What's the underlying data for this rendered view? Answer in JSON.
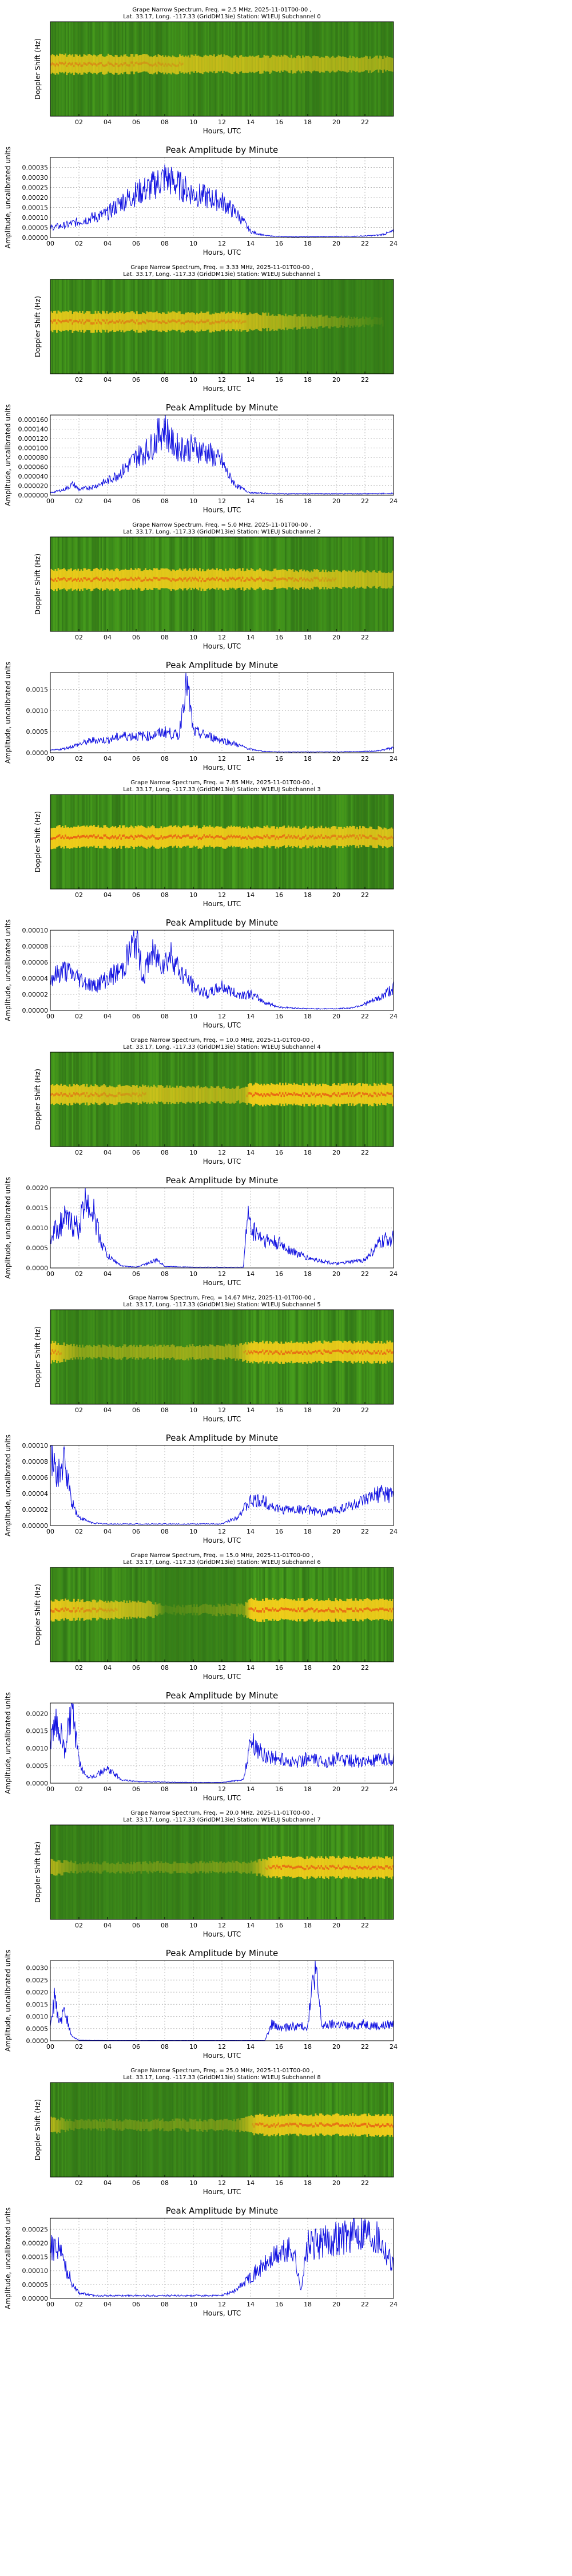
{
  "figure": {
    "spectrogram_ylabel": "Doppler Shift (Hz)",
    "spectrogram_xlabel": "Hours, UTC",
    "spectrogram_ticks": [
      "02",
      "04",
      "06",
      "08",
      "10",
      "12",
      "14",
      "16",
      "18",
      "20",
      "22"
    ],
    "amplitude_title": "Peak Amplitude by Minute",
    "amplitude_ylabel": "Amplitude, uncalibrated units",
    "amplitude_xlabel": "Hours, UTC",
    "amplitude_ticks": [
      "00",
      "02",
      "04",
      "06",
      "08",
      "10",
      "12",
      "14",
      "16",
      "18",
      "20",
      "22",
      "24"
    ],
    "colors": {
      "spectrogram_background": "#2e8b1f",
      "signal_band": "#ffd21a",
      "signal_core": "#e83010",
      "amplitude_line": "#1010e0"
    }
  },
  "chart_data": [
    {
      "type": "heatmap",
      "title": "Grape Narrow Spectrum, Freq. = 2.5 MHz, 2025-11-01T00-00 ,",
      "subtitle": "Lat.  33.17, Long. -117.33 (GridDM13ie) Station: W1EUJ Subchannel 0",
      "xlabel": "Hours, UTC",
      "ylabel": "Doppler Shift (Hz)",
      "xlim": [
        0,
        24
      ],
      "signal_band": [
        [
          0,
          0.8
        ],
        [
          14,
          0.65
        ],
        [
          24,
          0.5
        ]
      ]
    },
    {
      "type": "line",
      "title": "Peak Amplitude by Minute",
      "xlabel": "Hours, UTC",
      "ylabel": "Amplitude, uncalibrated units",
      "xlim": [
        0,
        24
      ],
      "ylim": [
        0,
        0.0004
      ],
      "yticks": [
        "0.00000",
        "0.00005",
        "0.00010",
        "0.00015",
        "0.00020",
        "0.00025",
        "0.00030",
        "0.00035"
      ],
      "x": [
        0,
        1,
        2,
        3,
        4,
        5,
        6,
        7,
        8,
        9,
        10,
        11,
        12,
        13,
        13.5,
        14,
        15,
        16,
        17,
        18,
        19,
        20,
        21,
        22,
        23,
        24
      ],
      "y": [
        5e-05,
        6e-05,
        8e-05,
        0.0001,
        0.00012,
        0.00018,
        0.00022,
        0.00025,
        0.0003,
        0.00026,
        0.00022,
        0.0002,
        0.00018,
        0.00012,
        8e-05,
        3e-05,
        1e-05,
        5e-06,
        4e-06,
        4e-06,
        5e-06,
        6e-06,
        6e-06,
        8e-06,
        1.2e-05,
        3e-05
      ]
    },
    {
      "type": "heatmap",
      "title": "Grape Narrow Spectrum, Freq. = 3.33 MHz, 2025-11-01T00-00 ,",
      "subtitle": "Lat.  33.17, Long. -117.33 (GridDM13ie) Station: W1EUJ Subchannel 1",
      "xlabel": "Hours, UTC",
      "ylabel": "Doppler Shift (Hz)",
      "xlim": [
        0,
        24
      ],
      "signal_band": [
        [
          0,
          0.85
        ],
        [
          13,
          0.75
        ],
        [
          24,
          0.0
        ]
      ]
    },
    {
      "type": "line",
      "title": "Peak Amplitude by Minute",
      "xlabel": "Hours, UTC",
      "ylabel": "Amplitude, uncalibrated units",
      "xlim": [
        0,
        24
      ],
      "ylim": [
        0,
        0.00017
      ],
      "yticks": [
        "0.000000",
        "0.000020",
        "0.000040",
        "0.000060",
        "0.000080",
        "0.000100",
        "0.000120",
        "0.000140",
        "0.000160"
      ],
      "x": [
        0,
        1,
        1.6,
        2,
        3,
        4,
        5,
        6,
        7,
        7.5,
        8,
        8.5,
        9,
        10,
        11,
        12,
        12.5,
        13,
        14,
        16,
        18,
        20,
        22,
        24
      ],
      "y": [
        5e-06,
        1.2e-05,
        2.4e-05,
        1.2e-05,
        1.8e-05,
        3e-05,
        5e-05,
        8e-05,
        0.0001,
        0.000125,
        0.000145,
        0.00011,
        0.0001,
        0.0001,
        9e-05,
        7e-05,
        4e-05,
        2e-05,
        5e-06,
        3e-06,
        3e-06,
        3e-06,
        3e-06,
        4e-06
      ]
    },
    {
      "type": "heatmap",
      "title": "Grape Narrow Spectrum, Freq. = 5.0 MHz, 2025-11-01T00-00 ,",
      "subtitle": "Lat.  33.17, Long. -117.33 (GridDM13ie) Station: W1EUJ Subchannel 2",
      "xlabel": "Hours, UTC",
      "ylabel": "Doppler Shift (Hz)",
      "xlim": [
        0,
        24
      ],
      "signal_band": [
        [
          0,
          0.9
        ],
        [
          14,
          0.85
        ],
        [
          24,
          0.6
        ]
      ]
    },
    {
      "type": "line",
      "title": "Peak Amplitude by Minute",
      "xlabel": "Hours, UTC",
      "ylabel": "Amplitude, uncalibrated units",
      "xlim": [
        0,
        24
      ],
      "ylim": [
        0,
        0.0019
      ],
      "yticks": [
        "0.0000",
        "0.0005",
        "0.0010",
        "0.0015"
      ],
      "x": [
        0,
        1,
        2,
        3,
        4,
        5,
        6,
        7,
        8,
        9,
        9.5,
        10,
        11,
        12,
        13,
        14,
        15,
        16,
        18,
        20,
        22,
        23,
        24
      ],
      "y": [
        5e-05,
        0.0001,
        0.0002,
        0.0003,
        0.0003,
        0.0004,
        0.0004,
        0.0004,
        0.0005,
        0.0004,
        0.0018,
        0.0005,
        0.0004,
        0.0003,
        0.0002,
        8e-05,
        3e-05,
        2e-05,
        2e-05,
        2e-05,
        3e-05,
        5e-05,
        0.00012
      ]
    },
    {
      "type": "heatmap",
      "title": "Grape Narrow Spectrum, Freq. = 7.85 MHz, 2025-11-01T00-00 ,",
      "subtitle": "Lat.  33.17, Long. -117.33 (GridDM13ie) Station: W1EUJ Subchannel 3",
      "xlabel": "Hours, UTC",
      "ylabel": "Doppler Shift (Hz)",
      "xlim": [
        0,
        24
      ],
      "signal_band": [
        [
          0,
          0.95
        ],
        [
          14,
          0.9
        ],
        [
          24,
          0.8
        ]
      ]
    },
    {
      "type": "line",
      "title": "Peak Amplitude by Minute",
      "xlabel": "Hours, UTC",
      "ylabel": "Amplitude, uncalibrated units",
      "xlim": [
        0,
        24
      ],
      "ylim": [
        0,
        0.0001
      ],
      "yticks": [
        "0.00000",
        "0.00002",
        "0.00004",
        "0.00006",
        "0.00008",
        "0.00010"
      ],
      "x": [
        0,
        1,
        2,
        3,
        4,
        5,
        5.5,
        6,
        6.5,
        7,
        8,
        8.5,
        9,
        10,
        11,
        12,
        13,
        14,
        15,
        16,
        18,
        20,
        21,
        22,
        23,
        24
      ],
      "y": [
        4e-05,
        5e-05,
        4e-05,
        3e-05,
        4e-05,
        5e-05,
        7e-05,
        9e-05,
        4e-05,
        7e-05,
        6e-05,
        7e-05,
        5e-05,
        3e-05,
        2e-05,
        3e-05,
        2e-05,
        2e-05,
        1e-05,
        4e-06,
        2e-06,
        2e-06,
        3e-06,
        8e-06,
        1.5e-05,
        2.8e-05
      ]
    },
    {
      "type": "heatmap",
      "title": "Grape Narrow Spectrum, Freq. = 10.0 MHz, 2025-11-01T00-00 ,",
      "subtitle": "Lat.  33.17, Long. -117.33 (GridDM13ie) Station: W1EUJ Subchannel 4",
      "xlabel": "Hours, UTC",
      "ylabel": "Doppler Shift (Hz)",
      "xlim": [
        0,
        24
      ],
      "signal_band": [
        [
          0,
          0.85
        ],
        [
          13.5,
          0.55
        ],
        [
          14,
          0.95
        ],
        [
          24,
          0.9
        ]
      ]
    },
    {
      "type": "line",
      "title": "Peak Amplitude by Minute",
      "xlabel": "Hours, UTC",
      "ylabel": "Amplitude, uncalibrated units",
      "xlim": [
        0,
        24
      ],
      "ylim": [
        0,
        0.002
      ],
      "yticks": [
        "0.0000",
        "0.0005",
        "0.0010",
        "0.0015",
        "0.0020"
      ],
      "x": [
        0,
        1,
        2,
        2.5,
        3,
        3.5,
        4,
        5,
        6,
        7.5,
        8,
        10,
        12,
        13.5,
        13.8,
        14,
        15,
        16,
        17,
        18,
        20,
        22,
        23,
        24
      ],
      "y": [
        0.0008,
        0.0012,
        0.001,
        0.0018,
        0.0014,
        0.0007,
        0.0003,
        5e-05,
        2e-05,
        0.0002,
        4e-05,
        2e-05,
        2e-05,
        2e-05,
        0.0014,
        0.001,
        0.0007,
        0.0006,
        0.0004,
        0.00025,
        0.0001,
        0.0002,
        0.0006,
        0.0008
      ]
    },
    {
      "type": "heatmap",
      "title": "Grape Narrow Spectrum, Freq. = 14.67 MHz, 2025-11-01T00-00 ,",
      "subtitle": "Lat.  33.17, Long. -117.33 (GridDM13ie) Station: W1EUJ Subchannel 5",
      "xlabel": "Hours, UTC",
      "ylabel": "Doppler Shift (Hz)",
      "xlim": [
        0,
        24
      ],
      "signal_band": [
        [
          0,
          0.9
        ],
        [
          2,
          0.4
        ],
        [
          13,
          0.5
        ],
        [
          14,
          0.9
        ],
        [
          24,
          0.9
        ]
      ]
    },
    {
      "type": "line",
      "title": "Peak Amplitude by Minute",
      "xlabel": "Hours, UTC",
      "ylabel": "Amplitude, uncalibrated units",
      "xlim": [
        0,
        24
      ],
      "ylim": [
        0,
        0.0001
      ],
      "yticks": [
        "0.00000",
        "0.00002",
        "0.00004",
        "0.00006",
        "0.00008",
        "0.00010"
      ],
      "x": [
        0,
        0.5,
        1,
        1.5,
        2,
        3,
        4,
        6,
        8,
        10,
        12,
        13,
        14,
        15,
        16,
        17,
        18,
        19,
        20,
        21,
        22,
        23,
        24
      ],
      "y": [
        9e-05,
        6e-05,
        8e-05,
        3e-05,
        1e-05,
        3e-06,
        2e-06,
        2e-06,
        2e-06,
        2e-06,
        2e-06,
        1e-05,
        3e-05,
        3e-05,
        2e-05,
        2e-05,
        2e-05,
        1.5e-05,
        2e-05,
        2.5e-05,
        3e-05,
        4e-05,
        4e-05
      ]
    },
    {
      "type": "heatmap",
      "title": "Grape Narrow Spectrum, Freq. = 15.0 MHz, 2025-11-01T00-00 ,",
      "subtitle": "Lat.  33.17, Long. -117.33 (GridDM13ie) Station: W1EUJ Subchannel 6",
      "xlabel": "Hours, UTC",
      "ylabel": "Doppler Shift (Hz)",
      "xlim": [
        0,
        24
      ],
      "signal_band": [
        [
          0,
          0.9
        ],
        [
          7,
          0.6
        ],
        [
          8,
          0.1
        ],
        [
          13.5,
          0.3
        ],
        [
          14,
          0.95
        ],
        [
          24,
          0.9
        ]
      ]
    },
    {
      "type": "line",
      "title": "Peak Amplitude by Minute",
      "xlabel": "Hours, UTC",
      "ylabel": "Amplitude, uncalibrated units",
      "xlim": [
        0,
        24
      ],
      "ylim": [
        0,
        0.0023
      ],
      "yticks": [
        "0.0000",
        "0.0005",
        "0.0010",
        "0.0015",
        "0.0020"
      ],
      "x": [
        0,
        0.5,
        1,
        1.5,
        2,
        2.5,
        3,
        4,
        5,
        6,
        8,
        10,
        12,
        13.5,
        14,
        15,
        16,
        17,
        18,
        19,
        20,
        22,
        24
      ],
      "y": [
        0.0012,
        0.0018,
        0.0009,
        0.0021,
        0.0006,
        0.0002,
        0.0002,
        0.0004,
        0.0001,
        5e-05,
        3e-05,
        2e-05,
        2e-05,
        0.0001,
        0.0012,
        0.0008,
        0.0007,
        0.0006,
        0.0007,
        0.0006,
        0.0007,
        0.0006,
        0.0007
      ]
    },
    {
      "type": "heatmap",
      "title": "Grape Narrow Spectrum, Freq. = 20.0 MHz, 2025-11-01T00-00 ,",
      "subtitle": "Lat.  33.17, Long. -117.33 (GridDM13ie) Station: W1EUJ Subchannel 7",
      "xlabel": "Hours, UTC",
      "ylabel": "Doppler Shift (Hz)",
      "xlim": [
        0,
        24
      ],
      "signal_band": [
        [
          0,
          0.6
        ],
        [
          2,
          0.2
        ],
        [
          14,
          0.3
        ],
        [
          15.5,
          0.9
        ],
        [
          24,
          0.9
        ]
      ]
    },
    {
      "type": "line",
      "title": "Peak Amplitude by Minute",
      "xlabel": "Hours, UTC",
      "ylabel": "Amplitude, uncalibrated units",
      "xlim": [
        0,
        24
      ],
      "ylim": [
        0,
        0.0033
      ],
      "yticks": [
        "0.0000",
        "0.0005",
        "0.0010",
        "0.0015",
        "0.0020",
        "0.0025",
        "0.0030"
      ],
      "x": [
        0,
        0.3,
        0.6,
        1,
        1.5,
        2,
        4,
        8,
        12,
        15,
        15.5,
        16,
        17,
        18,
        18.5,
        19,
        20,
        21,
        22,
        23,
        24
      ],
      "y": [
        0.0006,
        0.0018,
        0.0007,
        0.0012,
        0.0002,
        2e-05,
        1e-05,
        1e-05,
        1e-05,
        1e-05,
        0.0007,
        0.0005,
        0.0006,
        0.0006,
        0.0031,
        0.0006,
        0.0007,
        0.0006,
        0.0007,
        0.0006,
        0.0007
      ]
    },
    {
      "type": "heatmap",
      "title": "Grape Narrow Spectrum, Freq. = 25.0 MHz, 2025-11-01T00-00 ,",
      "subtitle": "Lat.  33.17, Long. -117.33 (GridDM13ie) Station: W1EUJ Subchannel 8",
      "xlabel": "Hours, UTC",
      "ylabel": "Doppler Shift (Hz)",
      "xlim": [
        0,
        24
      ],
      "signal_band": [
        [
          0,
          0.6
        ],
        [
          1.5,
          0.2
        ],
        [
          13,
          0.3
        ],
        [
          14.5,
          0.85
        ],
        [
          24,
          0.95
        ]
      ]
    },
    {
      "type": "line",
      "title": "Peak Amplitude by Minute",
      "xlabel": "Hours, UTC",
      "ylabel": "Amplitude, uncalibrated units",
      "xlim": [
        0,
        24
      ],
      "ylim": [
        0,
        0.00029
      ],
      "yticks": [
        "0.00000",
        "0.00005",
        "0.00010",
        "0.00015",
        "0.00020",
        "0.00025"
      ],
      "x": [
        0,
        0.5,
        1,
        1.5,
        2,
        3,
        4,
        6,
        8,
        10,
        12,
        13,
        14,
        15,
        16,
        17,
        17.5,
        18,
        19,
        20,
        21,
        22,
        23,
        24
      ],
      "y": [
        0.00018,
        0.0002,
        0.00012,
        6e-05,
        2e-05,
        1e-05,
        1e-05,
        1e-05,
        1e-05,
        1e-05,
        1e-05,
        3e-05,
        8e-05,
        0.00012,
        0.00016,
        0.00018,
        3e-05,
        0.00019,
        0.0002,
        0.00022,
        0.00023,
        0.00025,
        0.00022,
        0.00012
      ]
    }
  ]
}
